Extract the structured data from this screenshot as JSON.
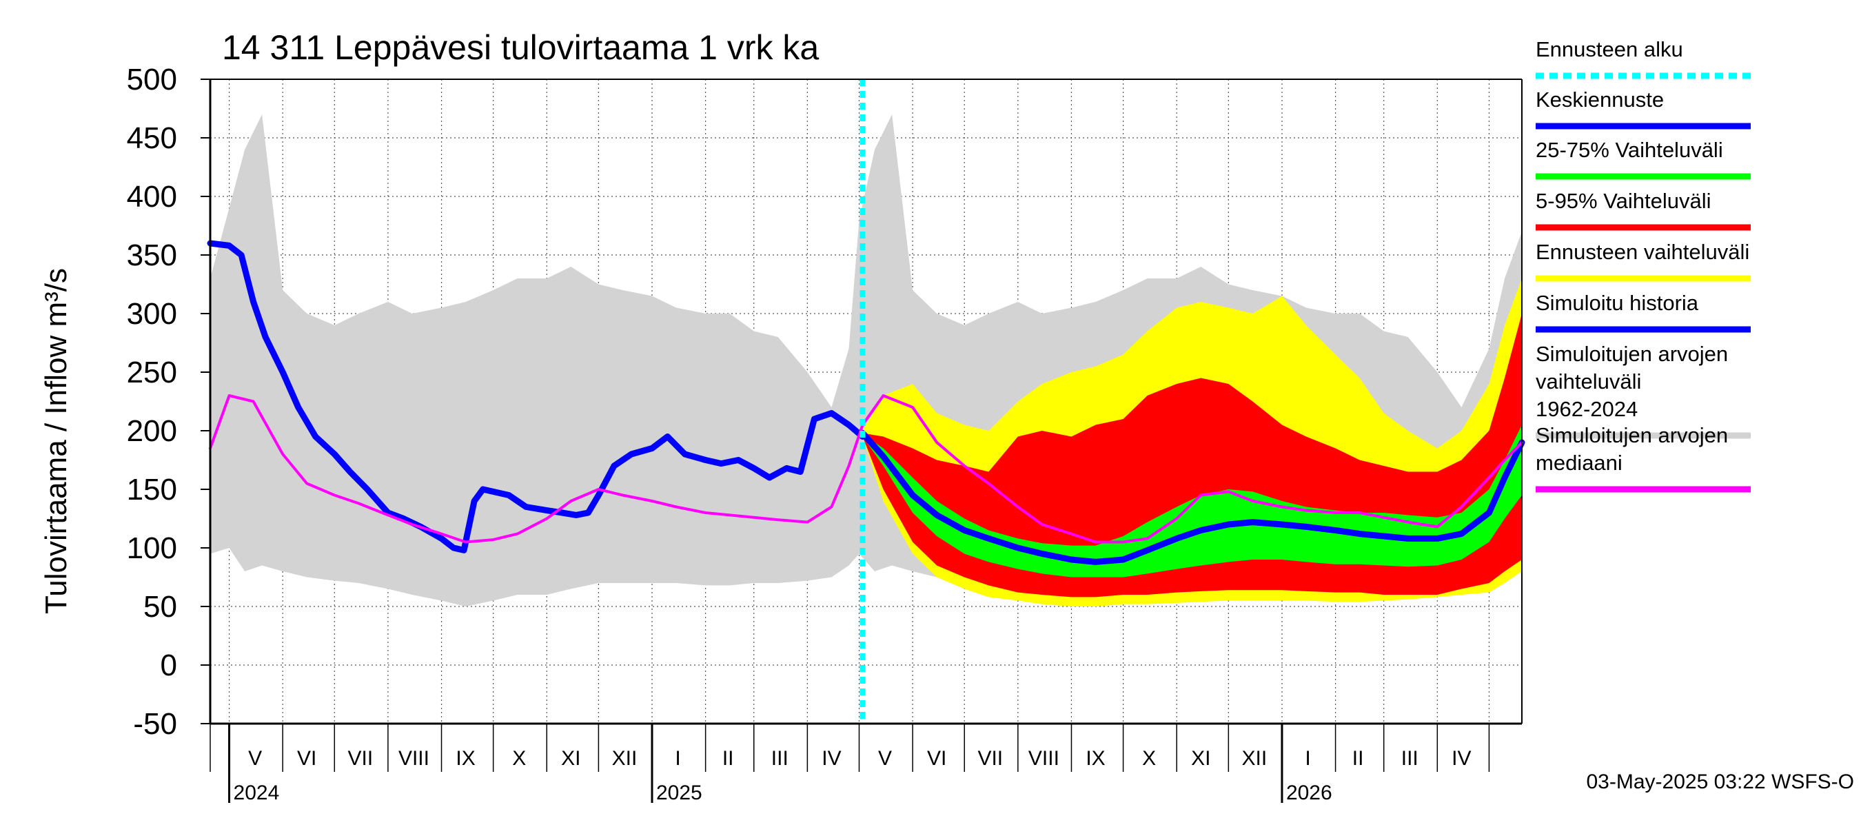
{
  "chart_data": {
    "type": "area",
    "title": "14 311 Leppävesi tulovirtaama 1 vrk ka",
    "ylabel": "Tulovirtaama / Inflow    m³/s",
    "ylim": [
      -50,
      500
    ],
    "yticks": [
      "500",
      "450",
      "400",
      "350",
      "300",
      "250",
      "200",
      "150",
      "100",
      "50",
      "0",
      "-50"
    ],
    "grid": true,
    "x_range": [
      "2024-04-20",
      "2026-05-20"
    ],
    "months": [
      {
        "label": "V",
        "mid": "2024-05-16"
      },
      {
        "label": "VI",
        "mid": "2024-06-15"
      },
      {
        "label": "VII",
        "mid": "2024-07-16"
      },
      {
        "label": "VIII",
        "mid": "2024-08-16"
      },
      {
        "label": "IX",
        "mid": "2024-09-15"
      },
      {
        "label": "X",
        "mid": "2024-10-16"
      },
      {
        "label": "XI",
        "mid": "2024-11-15"
      },
      {
        "label": "XII",
        "mid": "2024-12-16"
      },
      {
        "label": "I",
        "mid": "2025-01-16"
      },
      {
        "label": "II",
        "mid": "2025-02-14"
      },
      {
        "label": "III",
        "mid": "2025-03-16"
      },
      {
        "label": "IV",
        "mid": "2025-04-15"
      },
      {
        "label": "V",
        "mid": "2025-05-16"
      },
      {
        "label": "VI",
        "mid": "2025-06-15"
      },
      {
        "label": "VII",
        "mid": "2025-07-16"
      },
      {
        "label": "VIII",
        "mid": "2025-08-16"
      },
      {
        "label": "IX",
        "mid": "2025-09-15"
      },
      {
        "label": "X",
        "mid": "2025-10-16"
      },
      {
        "label": "XI",
        "mid": "2025-11-15"
      },
      {
        "label": "XII",
        "mid": "2025-12-16"
      },
      {
        "label": "I",
        "mid": "2026-01-16"
      },
      {
        "label": "II",
        "mid": "2026-02-14"
      },
      {
        "label": "III",
        "mid": "2026-03-16"
      },
      {
        "label": "IV",
        "mid": "2026-04-15"
      }
    ],
    "month_starts": [
      "2024-05-01",
      "2024-06-01",
      "2024-07-01",
      "2024-08-01",
      "2024-09-01",
      "2024-10-01",
      "2024-11-01",
      "2024-12-01",
      "2025-01-01",
      "2025-02-01",
      "2025-03-01",
      "2025-04-01",
      "2025-05-01",
      "2025-06-01",
      "2025-07-01",
      "2025-08-01",
      "2025-09-01",
      "2025-10-01",
      "2025-11-01",
      "2025-12-01",
      "2026-01-01",
      "2026-02-01",
      "2026-03-01",
      "2026-04-01",
      "2026-05-01"
    ],
    "years": [
      {
        "label": "2024",
        "start": "2024-05-01"
      },
      {
        "label": "2025",
        "start": "2025-01-01"
      },
      {
        "label": "2026",
        "start": "2026-01-01"
      }
    ],
    "forecast_start": "2025-05-03",
    "series": [
      {
        "name": "Simuloitujen arvojen vaihteluväli 1962-2024",
        "color": "#d3d3d3",
        "x": [
          "2024-04-20",
          "2024-05-01",
          "2024-05-10",
          "2024-05-20",
          "2024-06-01",
          "2024-06-15",
          "2024-07-01",
          "2024-07-15",
          "2024-08-01",
          "2024-08-15",
          "2024-09-01",
          "2024-09-15",
          "2024-10-01",
          "2024-10-15",
          "2024-11-01",
          "2024-11-15",
          "2024-12-01",
          "2024-12-15",
          "2025-01-01",
          "2025-01-15",
          "2025-02-01",
          "2025-02-15",
          "2025-03-01",
          "2025-03-15",
          "2025-04-01",
          "2025-04-15",
          "2025-04-25",
          "2025-05-01",
          "2025-05-10",
          "2025-05-20",
          "2025-06-01",
          "2025-06-15",
          "2025-07-01",
          "2025-07-15",
          "2025-08-01",
          "2025-08-15",
          "2025-09-01",
          "2025-09-15",
          "2025-10-01",
          "2025-10-15",
          "2025-11-01",
          "2025-11-15",
          "2025-12-01",
          "2025-12-15",
          "2026-01-01",
          "2026-01-15",
          "2026-02-01",
          "2026-02-15",
          "2026-03-01",
          "2026-03-15",
          "2026-04-01",
          "2026-04-15",
          "2026-05-01",
          "2026-05-10",
          "2026-05-20"
        ],
        "low": [
          95,
          100,
          80,
          85,
          80,
          75,
          72,
          70,
          65,
          60,
          55,
          50,
          55,
          60,
          60,
          65,
          70,
          70,
          70,
          70,
          68,
          68,
          70,
          70,
          72,
          75,
          85,
          95,
          80,
          85,
          80,
          75,
          72,
          70,
          65,
          60,
          55,
          50,
          55,
          60,
          60,
          65,
          70,
          70,
          70,
          70,
          68,
          68,
          70,
          70,
          72,
          75,
          85,
          90,
          95
        ],
        "high": [
          330,
          390,
          440,
          470,
          320,
          300,
          290,
          300,
          310,
          300,
          305,
          310,
          320,
          330,
          330,
          340,
          325,
          320,
          315,
          305,
          300,
          300,
          285,
          280,
          250,
          220,
          270,
          380,
          440,
          470,
          320,
          300,
          290,
          300,
          310,
          300,
          305,
          310,
          320,
          330,
          330,
          340,
          325,
          320,
          315,
          305,
          300,
          300,
          285,
          280,
          250,
          220,
          270,
          330,
          370
        ]
      },
      {
        "name": "Ennusteen vaihteluväli",
        "color": "#ffff00",
        "x": [
          "2025-05-03",
          "2025-05-15",
          "2025-06-01",
          "2025-06-15",
          "2025-07-01",
          "2025-07-15",
          "2025-08-01",
          "2025-08-15",
          "2025-09-01",
          "2025-09-15",
          "2025-10-01",
          "2025-10-15",
          "2025-11-01",
          "2025-11-15",
          "2025-12-01",
          "2025-12-15",
          "2026-01-01",
          "2026-01-15",
          "2026-02-01",
          "2026-02-15",
          "2026-03-01",
          "2026-03-15",
          "2026-04-01",
          "2026-04-15",
          "2026-05-01",
          "2026-05-10",
          "2026-05-20"
        ],
        "low": [
          195,
          140,
          95,
          75,
          65,
          58,
          55,
          52,
          50,
          50,
          52,
          52,
          53,
          54,
          55,
          55,
          55,
          55,
          54,
          54,
          55,
          56,
          58,
          60,
          62,
          70,
          80
        ],
        "high": [
          200,
          230,
          240,
          215,
          205,
          200,
          225,
          240,
          250,
          255,
          265,
          285,
          305,
          310,
          305,
          300,
          315,
          290,
          265,
          245,
          215,
          200,
          185,
          200,
          240,
          290,
          330
        ]
      },
      {
        "name": "5-95% Vaihteluväli",
        "color": "#ff0000",
        "x": [
          "2025-05-03",
          "2025-05-15",
          "2025-06-01",
          "2025-06-15",
          "2025-07-01",
          "2025-07-15",
          "2025-08-01",
          "2025-08-15",
          "2025-09-01",
          "2025-09-15",
          "2025-10-01",
          "2025-10-15",
          "2025-11-01",
          "2025-11-15",
          "2025-12-01",
          "2025-12-15",
          "2026-01-01",
          "2026-01-15",
          "2026-02-01",
          "2026-02-15",
          "2026-03-01",
          "2026-03-15",
          "2026-04-01",
          "2026-04-15",
          "2026-05-01",
          "2026-05-10",
          "2026-05-20"
        ],
        "low": [
          195,
          150,
          105,
          85,
          75,
          68,
          62,
          60,
          58,
          58,
          60,
          60,
          62,
          63,
          64,
          64,
          64,
          63,
          62,
          62,
          60,
          60,
          60,
          65,
          70,
          80,
          90
        ],
        "high": [
          198,
          195,
          185,
          175,
          170,
          165,
          195,
          200,
          195,
          205,
          210,
          230,
          240,
          245,
          240,
          225,
          205,
          195,
          185,
          175,
          170,
          165,
          165,
          175,
          200,
          245,
          300
        ]
      },
      {
        "name": "25-75% Vaihteluväli",
        "color": "#00ff00",
        "x": [
          "2025-05-03",
          "2025-05-15",
          "2025-06-01",
          "2025-06-15",
          "2025-07-01",
          "2025-07-15",
          "2025-08-01",
          "2025-08-15",
          "2025-09-01",
          "2025-09-15",
          "2025-10-01",
          "2025-10-15",
          "2025-11-01",
          "2025-11-15",
          "2025-12-01",
          "2025-12-15",
          "2026-01-01",
          "2026-01-15",
          "2026-02-01",
          "2026-02-15",
          "2026-03-01",
          "2026-03-15",
          "2026-04-01",
          "2026-04-15",
          "2026-05-01",
          "2026-05-10",
          "2026-05-20"
        ],
        "low": [
          195,
          170,
          130,
          110,
          95,
          88,
          82,
          78,
          75,
          75,
          75,
          78,
          82,
          85,
          88,
          90,
          90,
          88,
          86,
          86,
          85,
          84,
          85,
          90,
          105,
          125,
          145
        ],
        "high": [
          197,
          185,
          160,
          140,
          125,
          115,
          108,
          104,
          102,
          102,
          110,
          122,
          135,
          145,
          150,
          148,
          140,
          135,
          132,
          130,
          130,
          128,
          126,
          130,
          150,
          175,
          205
        ]
      },
      {
        "name": "Keskiennuste",
        "color": "#0000ff",
        "x": [
          "2025-05-03",
          "2025-05-15",
          "2025-06-01",
          "2025-06-15",
          "2025-07-01",
          "2025-07-15",
          "2025-08-01",
          "2025-08-15",
          "2025-09-01",
          "2025-09-15",
          "2025-10-01",
          "2025-10-15",
          "2025-11-01",
          "2025-11-15",
          "2025-12-01",
          "2025-12-15",
          "2026-01-01",
          "2026-01-15",
          "2026-02-01",
          "2026-02-15",
          "2026-03-01",
          "2026-03-15",
          "2026-04-01",
          "2026-04-15",
          "2026-05-01",
          "2026-05-10",
          "2026-05-20"
        ],
        "y": [
          198,
          178,
          145,
          128,
          115,
          108,
          100,
          95,
          90,
          88,
          90,
          98,
          108,
          115,
          120,
          122,
          120,
          118,
          115,
          112,
          110,
          108,
          108,
          112,
          130,
          160,
          190
        ]
      },
      {
        "name": "Simuloitu historia",
        "color": "#0000ff",
        "x": [
          "2024-04-20",
          "2024-05-01",
          "2024-05-08",
          "2024-05-15",
          "2024-05-22",
          "2024-06-01",
          "2024-06-10",
          "2024-06-20",
          "2024-07-01",
          "2024-07-10",
          "2024-07-20",
          "2024-08-01",
          "2024-08-10",
          "2024-08-20",
          "2024-09-01",
          "2024-09-08",
          "2024-09-14",
          "2024-09-20",
          "2024-09-25",
          "2024-10-01",
          "2024-10-10",
          "2024-10-20",
          "2024-11-01",
          "2024-11-10",
          "2024-11-18",
          "2024-11-25",
          "2024-12-01",
          "2024-12-10",
          "2024-12-20",
          "2025-01-01",
          "2025-01-10",
          "2025-01-20",
          "2025-02-01",
          "2025-02-10",
          "2025-02-20",
          "2025-03-01",
          "2025-03-10",
          "2025-03-20",
          "2025-03-28",
          "2025-04-05",
          "2025-04-15",
          "2025-04-25",
          "2025-05-03"
        ],
        "y": [
          360,
          358,
          350,
          310,
          280,
          250,
          220,
          195,
          180,
          165,
          150,
          130,
          125,
          118,
          108,
          100,
          98,
          140,
          150,
          148,
          145,
          135,
          132,
          130,
          128,
          130,
          145,
          170,
          180,
          185,
          195,
          180,
          175,
          172,
          175,
          168,
          160,
          168,
          165,
          210,
          215,
          205,
          195
        ]
      },
      {
        "name": "Simuloitujen arvojen mediaani",
        "color": "#ff00ff",
        "x": [
          "2024-04-20",
          "2024-05-01",
          "2024-05-15",
          "2024-06-01",
          "2024-06-15",
          "2024-07-01",
          "2024-07-15",
          "2024-08-01",
          "2024-08-15",
          "2024-09-01",
          "2024-09-15",
          "2024-10-01",
          "2024-10-15",
          "2024-11-01",
          "2024-11-15",
          "2024-12-01",
          "2024-12-15",
          "2025-01-01",
          "2025-01-15",
          "2025-02-01",
          "2025-02-15",
          "2025-03-01",
          "2025-03-15",
          "2025-04-01",
          "2025-04-15",
          "2025-04-25",
          "2025-05-03",
          "2025-05-15",
          "2025-06-01",
          "2025-06-15",
          "2025-07-01",
          "2025-07-15",
          "2025-08-01",
          "2025-08-15",
          "2025-09-01",
          "2025-09-15",
          "2025-10-01",
          "2025-10-15",
          "2025-11-01",
          "2025-11-15",
          "2025-12-01",
          "2025-12-15",
          "2026-01-01",
          "2026-01-15",
          "2026-02-01",
          "2026-02-15",
          "2026-03-01",
          "2026-03-15",
          "2026-04-01",
          "2026-04-15",
          "2026-05-01",
          "2026-05-10",
          "2026-05-20"
        ],
        "y": [
          185,
          230,
          225,
          180,
          155,
          145,
          138,
          128,
          120,
          112,
          105,
          107,
          112,
          125,
          140,
          150,
          145,
          140,
          135,
          130,
          128,
          126,
          124,
          122,
          135,
          170,
          205,
          230,
          220,
          190,
          170,
          155,
          135,
          120,
          112,
          105,
          105,
          108,
          125,
          145,
          148,
          140,
          135,
          132,
          130,
          130,
          126,
          122,
          118,
          135,
          160,
          175,
          190
        ]
      }
    ],
    "legend_position": "right",
    "legend": [
      {
        "label": "Ennusteen alku",
        "color": "#00ffff",
        "style": "dashed"
      },
      {
        "label": "Keskiennuste",
        "color": "#0000ff",
        "style": "solid"
      },
      {
        "label": "25-75% Vaihteluväli",
        "color": "#00ff00",
        "style": "solid"
      },
      {
        "label": "5-95% Vaihteluväli",
        "color": "#ff0000",
        "style": "solid"
      },
      {
        "label": "Ennusteen vaihteluväli",
        "color": "#ffff00",
        "style": "solid"
      },
      {
        "label": "Simuloitu historia",
        "color": "#0000ff",
        "style": "solid"
      },
      {
        "label": "Simuloitujen arvojen vaihteluväli 1962-2024",
        "color": "#d3d3d3",
        "style": "solid"
      },
      {
        "label": "Simuloitujen arvojen mediaani",
        "color": "#ff00ff",
        "style": "solid"
      }
    ],
    "footer": "03-May-2025 03:22 WSFS-O"
  }
}
